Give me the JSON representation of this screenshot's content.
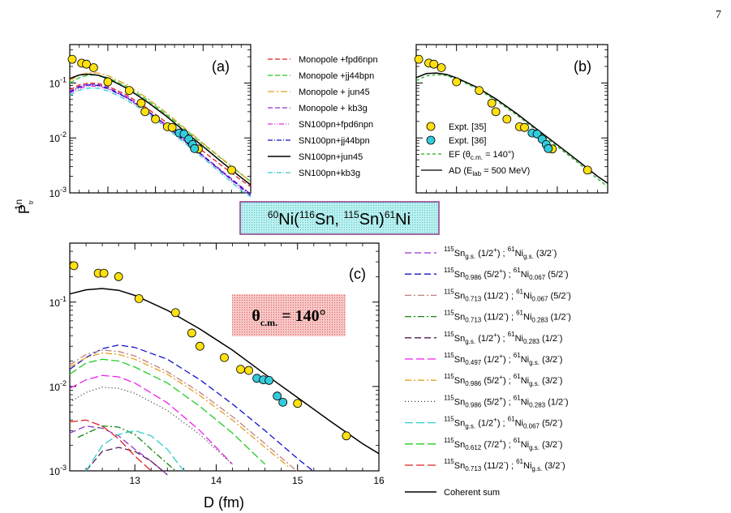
{
  "page_number": "7",
  "colors": {
    "red": "#dd2222",
    "green": "#22cc22",
    "orange": "#e6a020",
    "purple": "#9933cc",
    "magenta": "#dd33dd",
    "blue": "#1111cc",
    "black": "#000000",
    "cyan": "#33cccc",
    "darkgreen": "#118811",
    "rosy": "#c08080",
    "darkpurple": "#551a55",
    "pink": "#ee22ee",
    "marker_yellow": "#ffe011",
    "marker_cyan": "#33ccdd"
  },
  "shared": {
    "ylabel_main": "P",
    "ylabel_sub": "tr",
    "ylabel_sup": "1n",
    "xlabel": "D (fm)",
    "y_tick_base": "10",
    "reaction_label": {
      "m1": "60",
      "e1": "Ni(",
      "m2": "116",
      "e2": "Sn, ",
      "m3": "115",
      "e3": "Sn)",
      "m4": "61",
      "e4": "Ni"
    },
    "theta_label": {
      "sym": "θ",
      "sub": "c.m.",
      "val": " = 140°"
    }
  },
  "chart_data": [
    {
      "panel": "(a)",
      "type": "line",
      "scale": {
        "x": "linear",
        "y": "log"
      },
      "xlim": [
        12.2,
        16
      ],
      "ylim": [
        0.001,
        0.5
      ],
      "yticks": [
        {
          "exp": "-3"
        },
        {
          "exp": "-2"
        },
        {
          "exp": "-1"
        }
      ],
      "series": [
        {
          "name": "Monopole +fpd6npn",
          "color": "#dd2222",
          "dash": "6,3",
          "x": [
            12.2,
            12.4,
            12.6,
            12.8,
            13.0,
            13.4,
            13.8,
            14.2,
            14.6,
            15.0,
            15.4,
            15.8,
            16.0
          ],
          "y": [
            0.075,
            0.092,
            0.1,
            0.098,
            0.088,
            0.06,
            0.036,
            0.02,
            0.0105,
            0.0057,
            0.0031,
            0.0017,
            0.0013
          ]
        },
        {
          "name": "Monopole +jj44bpn",
          "color": "#22cc22",
          "dash": "6,3",
          "x": [
            12.2,
            12.4,
            12.6,
            12.8,
            13.0,
            13.4,
            13.8,
            14.2,
            14.6,
            15.0,
            15.4,
            15.8,
            16.0
          ],
          "y": [
            0.1,
            0.125,
            0.14,
            0.138,
            0.125,
            0.086,
            0.051,
            0.028,
            0.0148,
            0.0078,
            0.0041,
            0.0022,
            0.0016
          ]
        },
        {
          "name": "Monopole + jun45",
          "color": "#e6a020",
          "dash": "8,3,2,3",
          "x": [
            12.2,
            12.4,
            12.6,
            12.8,
            13.0,
            13.4,
            13.8,
            14.2,
            14.6,
            15.0,
            15.4,
            15.8,
            16.0
          ],
          "y": [
            0.11,
            0.14,
            0.155,
            0.152,
            0.137,
            0.093,
            0.055,
            0.03,
            0.0155,
            0.008,
            0.0042,
            0.0022,
            0.0016
          ]
        },
        {
          "name": "Monopole + kb3g",
          "color": "#9933cc",
          "dash": "6,3",
          "x": [
            12.2,
            12.4,
            12.6,
            12.8,
            13.0,
            13.4,
            13.8,
            14.2,
            14.6,
            15.0,
            15.4,
            15.8,
            16.0
          ],
          "y": [
            0.07,
            0.087,
            0.095,
            0.093,
            0.083,
            0.056,
            0.033,
            0.018,
            0.0092,
            0.0048,
            0.0025,
            0.0013,
            0.00095
          ]
        },
        {
          "name": "SN100pn+fpd6npn",
          "color": "#dd33dd",
          "dash": "6,2,1,2,1,2",
          "x": [
            12.2,
            12.4,
            12.6,
            12.8,
            13.0,
            13.4,
            13.8,
            14.2,
            14.6,
            15.0,
            15.4,
            15.8,
            16.0
          ],
          "y": [
            0.065,
            0.08,
            0.088,
            0.087,
            0.078,
            0.053,
            0.031,
            0.017,
            0.0088,
            0.0046,
            0.0024,
            0.0012,
            0.0009
          ]
        },
        {
          "name": "SN100pn+jj44bpn",
          "color": "#1111cc",
          "dash": "6,2,1,2",
          "x": [
            12.2,
            12.4,
            12.6,
            12.8,
            13.0,
            13.4,
            13.8,
            14.2,
            14.6,
            15.0,
            15.4,
            15.8,
            16.0
          ],
          "y": [
            0.068,
            0.084,
            0.092,
            0.09,
            0.08,
            0.054,
            0.032,
            0.0175,
            0.009,
            0.0047,
            0.0024,
            0.00125,
            0.00092
          ]
        },
        {
          "name": "SN100pn+jun45",
          "color": "#000000",
          "dash": "",
          "x": [
            12.2,
            12.4,
            12.6,
            12.8,
            13.0,
            13.4,
            13.8,
            14.2,
            14.6,
            15.0,
            15.4,
            15.8,
            16.0
          ],
          "y": [
            0.12,
            0.14,
            0.145,
            0.138,
            0.12,
            0.08,
            0.047,
            0.026,
            0.0135,
            0.007,
            0.0036,
            0.0019,
            0.0014
          ]
        },
        {
          "name": "SN100pn+kb3g",
          "color": "#33cccc",
          "dash": "6,2,1,2",
          "x": [
            12.2,
            12.4,
            12.6,
            12.8,
            13.0,
            13.4,
            13.8,
            14.2,
            14.6,
            15.0,
            15.4,
            15.8,
            16.0
          ],
          "y": [
            0.06,
            0.074,
            0.081,
            0.08,
            0.072,
            0.049,
            0.029,
            0.016,
            0.0082,
            0.0043,
            0.0022,
            0.0011,
            0.00085
          ]
        }
      ],
      "points": [
        {
          "set": "yellow",
          "x": [
            12.25,
            12.45,
            12.55,
            12.7,
            13.0,
            13.45,
            13.7,
            13.78,
            14.0,
            14.25,
            14.35,
            14.9,
            15.6
          ],
          "y": [
            0.27,
            0.23,
            0.22,
            0.19,
            0.105,
            0.073,
            0.043,
            0.03,
            0.022,
            0.016,
            0.0155,
            0.0063,
            0.0026
          ]
        },
        {
          "set": "cyan",
          "x": [
            14.5,
            14.6,
            14.7,
            14.78,
            14.82
          ],
          "y": [
            0.0123,
            0.0118,
            0.0095,
            0.0076,
            0.0064
          ]
        }
      ]
    },
    {
      "panel": "(b)",
      "type": "line",
      "scale": {
        "x": "linear",
        "y": "log"
      },
      "xlim": [
        12.2,
        16
      ],
      "ylim": [
        0.001,
        0.5
      ],
      "legend": [
        {
          "label": "Expt. [35]",
          "marker": "yellow"
        },
        {
          "label": "Expt. [36]",
          "marker": "cyan"
        }
      ],
      "series": [
        {
          "name_main": "EF (θ",
          "name_sub": "c.m.",
          "name_tail": " = 140°)",
          "color": "#22aa22",
          "dash": "4,3",
          "x": [
            12.2,
            12.4,
            12.6,
            12.8,
            13.0,
            13.4,
            13.8,
            14.2,
            14.6,
            15.0,
            15.4,
            15.8,
            16.0
          ],
          "y": [
            0.11,
            0.135,
            0.142,
            0.136,
            0.118,
            0.08,
            0.047,
            0.026,
            0.0135,
            0.007,
            0.0036,
            0.0018,
            0.0013
          ]
        },
        {
          "name_main": "AD (E",
          "name_sub": "lab",
          "name_tail": " = 500 MeV)",
          "color": "#000000",
          "dash": "",
          "x": [
            12.2,
            12.4,
            12.6,
            12.8,
            13.0,
            13.4,
            13.8,
            14.2,
            14.6,
            15.0,
            15.4,
            15.8,
            16.0
          ],
          "y": [
            0.125,
            0.148,
            0.152,
            0.143,
            0.124,
            0.084,
            0.05,
            0.0275,
            0.0143,
            0.0075,
            0.0039,
            0.002,
            0.0015
          ]
        }
      ]
    },
    {
      "panel": "(c)",
      "type": "line",
      "scale": {
        "x": "linear",
        "y": "log"
      },
      "xlim": [
        12.2,
        16
      ],
      "ylim": [
        0.001,
        0.5
      ],
      "xticks": [
        "13",
        "14",
        "15",
        "16"
      ],
      "series": [
        {
          "a": "115",
          "s1": "g.s.",
          "j1": "(1/2",
          "p1": "+",
          "b": "61",
          "s2": "g.s.",
          "j2": "(3/2",
          "p2": "-",
          "color": "#9933cc",
          "dash": "8,4",
          "x": [
            12.2,
            12.4,
            12.6,
            12.8,
            13.0,
            13.2,
            13.4
          ],
          "y": [
            0.0028,
            0.0034,
            0.0032,
            0.0026,
            0.0018,
            0.0013,
            0.0009
          ]
        },
        {
          "a": "115",
          "s1": "0.986",
          "j1": "(5/2",
          "p1": "+",
          "b": "61",
          "s2": "0.067",
          "j2": "(5/2",
          "p2": "-",
          "color": "#1111cc",
          "dash": "8,4",
          "x": [
            12.2,
            12.4,
            12.6,
            12.8,
            13.0,
            13.4,
            13.8,
            14.2,
            14.6,
            15.0,
            15.2
          ],
          "y": [
            0.016,
            0.022,
            0.028,
            0.031,
            0.029,
            0.021,
            0.012,
            0.0062,
            0.003,
            0.0014,
            0.00098
          ]
        },
        {
          "a": "115",
          "s1": "0.713",
          "j1": "(11/2",
          "p1": "-",
          "b": "61",
          "s2": "0.067",
          "j2": "(5/2",
          "p2": "-",
          "color": "#c08080",
          "dash": "8,3,2,3",
          "x": [
            12.2,
            12.4,
            12.6,
            12.8,
            13.0,
            13.4,
            13.8,
            14.2,
            14.6,
            15.0
          ],
          "y": [
            0.018,
            0.024,
            0.027,
            0.026,
            0.023,
            0.015,
            0.0085,
            0.0044,
            0.0021,
            0.00098
          ]
        },
        {
          "a": "115",
          "s1": "0.713",
          "j1": "(11/2",
          "p1": "-",
          "b": "61",
          "s2": "0.283",
          "j2": "(1/2",
          "p2": "-",
          "color": "#118811",
          "dash": "8,3,2,3",
          "x": [
            12.3,
            12.6,
            12.8,
            13.0,
            13.2,
            13.5
          ],
          "y": [
            0.0025,
            0.0034,
            0.0033,
            0.0027,
            0.0018,
            0.001
          ]
        },
        {
          "a": "115",
          "s1": "g.s.",
          "j1": "(1/2",
          "p1": "+",
          "b": "61",
          "s2": "0.283",
          "j2": "(1/2",
          "p2": "-",
          "color": "#551a55",
          "dash": "8,4",
          "x": [
            12.4,
            12.6,
            12.8,
            13.0,
            13.2,
            13.4
          ],
          "y": [
            0.001,
            0.0017,
            0.0019,
            0.0017,
            0.0013,
            0.0009
          ]
        },
        {
          "a": "115",
          "s1": "0.497",
          "j1": "(1/2",
          "p1": "+",
          "b": "61",
          "s2": "g.s.",
          "j2": "(3/2",
          "p2": "-",
          "color": "#ee22ee",
          "dash": "10,4",
          "x": [
            12.2,
            12.4,
            12.6,
            12.8,
            13.0,
            13.4,
            13.8,
            14.2
          ],
          "y": [
            0.0095,
            0.012,
            0.0135,
            0.013,
            0.011,
            0.0064,
            0.003,
            0.0012
          ]
        },
        {
          "a": "115",
          "s1": "0.986",
          "j1": "(5/2",
          "p1": "+",
          "b": "61",
          "s2": "g.s.",
          "j2": "(3/2",
          "p2": "-",
          "color": "#e6a020",
          "dash": "8,3,2,3",
          "x": [
            12.2,
            12.4,
            12.6,
            12.8,
            13.0,
            13.4,
            13.8,
            14.2,
            14.6,
            14.9
          ],
          "y": [
            0.017,
            0.022,
            0.025,
            0.024,
            0.021,
            0.014,
            0.0078,
            0.004,
            0.0019,
            0.0011
          ]
        },
        {
          "a": "115",
          "s1": "0.986",
          "j1": "(5/2",
          "p1": "+",
          "b": "61",
          "s2": "0.283",
          "j2": "(1/2",
          "p2": "-",
          "color": "#333333",
          "dash": "1,3",
          "x": [
            12.2,
            12.4,
            12.6,
            12.8,
            13.0,
            13.4,
            13.8,
            14.2
          ],
          "y": [
            0.0065,
            0.0085,
            0.0098,
            0.0095,
            0.0083,
            0.0052,
            0.0027,
            0.0012
          ]
        },
        {
          "a": "115",
          "s1": "g.s.",
          "j1": "(1/2",
          "p1": "+",
          "b": "61",
          "s2": "0.067",
          "j2": "(5/2",
          "p2": "-",
          "color": "#33cccc",
          "dash": "10,4",
          "x": [
            12.4,
            12.6,
            12.8,
            13.0,
            13.2,
            13.4,
            13.6
          ],
          "y": [
            0.001,
            0.002,
            0.0027,
            0.003,
            0.0026,
            0.0018,
            0.001
          ]
        },
        {
          "a": "115",
          "s1": "0.612",
          "j1": "(7/2",
          "p1": "+",
          "b": "61",
          "s2": "g.s.",
          "j2": "(3/2",
          "p2": "-",
          "color": "#22cc22",
          "dash": "10,4",
          "x": [
            12.2,
            12.4,
            12.6,
            12.8,
            13.0,
            13.4,
            13.8,
            14.2,
            14.6
          ],
          "y": [
            0.014,
            0.019,
            0.021,
            0.02,
            0.017,
            0.011,
            0.0058,
            0.0028,
            0.0012
          ]
        },
        {
          "a": "115",
          "s1": "0.713",
          "j1": "(11/2",
          "p1": "-",
          "b": "61",
          "s2": "g.s.",
          "j2": "(3/2",
          "p2": "-",
          "color": "#dd2222",
          "dash": "10,4",
          "x": [
            12.2,
            12.4,
            12.6,
            12.8,
            13.0,
            13.2
          ],
          "y": [
            0.0038,
            0.004,
            0.0034,
            0.0024,
            0.0015,
            0.001
          ]
        },
        {
          "name": "Coherent sum",
          "color": "#000000",
          "dash": "",
          "x": [
            12.2,
            12.4,
            12.6,
            12.8,
            13.0,
            13.4,
            13.8,
            14.2,
            14.6,
            15.0,
            15.4,
            15.8,
            16.0
          ],
          "y": [
            0.125,
            0.14,
            0.145,
            0.138,
            0.12,
            0.08,
            0.048,
            0.027,
            0.014,
            0.0074,
            0.0039,
            0.0021,
            0.0016
          ]
        }
      ],
      "points": [
        {
          "set": "yellow",
          "x": [
            12.25,
            12.55,
            12.62,
            12.8,
            13.05,
            13.5,
            13.7,
            13.8,
            14.1,
            14.3,
            14.4,
            15.0,
            15.6
          ],
          "y": [
            0.27,
            0.22,
            0.22,
            0.2,
            0.11,
            0.075,
            0.043,
            0.03,
            0.022,
            0.016,
            0.0155,
            0.0063,
            0.0026
          ]
        },
        {
          "set": "cyan",
          "x": [
            14.5,
            14.58,
            14.65,
            14.75,
            14.82
          ],
          "y": [
            0.0125,
            0.012,
            0.0118,
            0.0077,
            0.0065
          ]
        }
      ]
    }
  ]
}
